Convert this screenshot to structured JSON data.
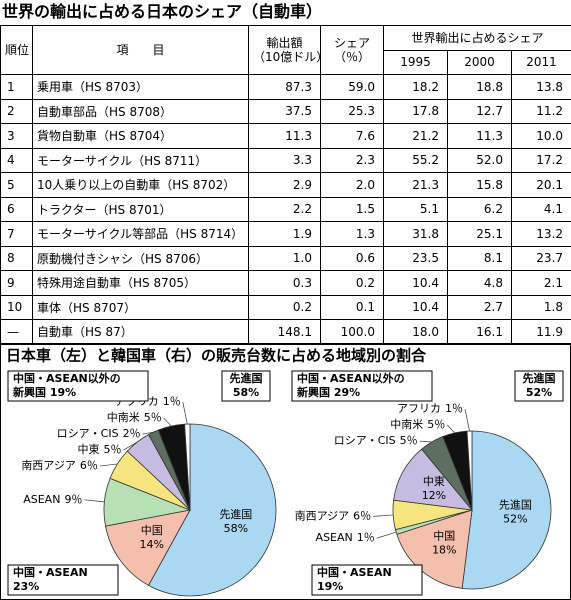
{
  "title": "世界の輸出に占める日本のシェア（自動車）",
  "table": {
    "header": {
      "rank": "順位",
      "item": "項　　目",
      "export": [
        "輸出額",
        "（10億ドル）"
      ],
      "share": [
        "シェア",
        "（％）"
      ],
      "world_share": "世界輸出に占めるシェア",
      "years": [
        "1995",
        "2000",
        "2011"
      ]
    },
    "rows": [
      [
        "1",
        "乗用車（HS 8703）",
        "87.3",
        "59.0",
        "18.2",
        "18.8",
        "13.8"
      ],
      [
        "2",
        "自動車部品（HS 8708）",
        "37.5",
        "25.3",
        "17.8",
        "12.7",
        "11.2"
      ],
      [
        "3",
        "貨物自動車（HS 8704）",
        "11.3",
        "7.6",
        "21.2",
        "11.3",
        "10.0"
      ],
      [
        "4",
        "モーターサイクル（HS 8711）",
        "3.3",
        "2.3",
        "55.2",
        "52.0",
        "17.2"
      ],
      [
        "5",
        "10人乗り以上の自動車（HS 8702）",
        "2.9",
        "2.0",
        "21.3",
        "15.8",
        "20.1"
      ],
      [
        "6",
        "トラクター（HS 8701）",
        "2.2",
        "1.5",
        "5.1",
        "6.2",
        "4.1"
      ],
      [
        "7",
        "モーターサイクル等部品（HS 8714）",
        "1.9",
        "1.3",
        "31.8",
        "25.1",
        "13.2"
      ],
      [
        "8",
        "原動機付きシャシ（HS 8706）",
        "1.0",
        "0.6",
        "23.5",
        "8.1",
        "23.7"
      ],
      [
        "9",
        "特殊用途自動車（HS 8705）",
        "0.3",
        "0.2",
        "10.4",
        "4.8",
        "2.1"
      ],
      [
        "10",
        "車体（HS 8707）",
        "0.2",
        "0.1",
        "10.4",
        "2.7",
        "1.8"
      ],
      [
        "—",
        "自動車（HS 87）",
        "148.1",
        "100.0",
        "18.0",
        "16.1",
        "11.9"
      ]
    ]
  },
  "section_title": "日本車（左）と韓国車（右）の販売台数に占める地域別の割合",
  "chart_data": [
    {
      "type": "pie",
      "categories": [
        "先進国",
        "中国",
        "ASEAN",
        "南西アジア",
        "中東",
        "ロシア・CIS",
        "中南米",
        "アフリカ"
      ],
      "values": [
        58,
        14,
        9,
        6,
        5,
        2,
        5,
        1
      ],
      "value_labels": [
        "58%",
        "14%",
        "9％",
        "6％",
        "5％",
        "2％",
        "5％",
        "1％"
      ],
      "colors": [
        "#aad8f2",
        "#f5bfae",
        "#b7e0b4",
        "#f6e47e",
        "#c6bce2",
        "#5d6f5f",
        "#111111",
        "#ffffff"
      ],
      "annotations": [
        {
          "lines": [
            "中国・ASEAN以外の",
            "新興国 19%"
          ]
        },
        {
          "lines": [
            "先進国",
            "58%"
          ]
        },
        {
          "lines": [
            "中国・ASEAN",
            "23%"
          ]
        }
      ]
    },
    {
      "type": "pie",
      "categories": [
        "先進国",
        "中国",
        "ASEAN",
        "南西アジア",
        "中東",
        "ロシア・CIS",
        "中南米",
        "アフリカ"
      ],
      "values": [
        52,
        18,
        1,
        6,
        12,
        5,
        5,
        1
      ],
      "value_labels": [
        "52%",
        "18%",
        "1％",
        "6％",
        "12%",
        "5％",
        "5％",
        "1％"
      ],
      "colors": [
        "#aad8f2",
        "#f5bfae",
        "#b7e0b4",
        "#f6e47e",
        "#c6bce2",
        "#5d6f5f",
        "#111111",
        "#ffffff"
      ],
      "annotations": [
        {
          "lines": [
            "中国・ASEAN以外の",
            "新興国 29%"
          ]
        },
        {
          "lines": [
            "先進国",
            "52%"
          ]
        },
        {
          "lines": [
            "中国・ASEAN",
            "19%"
          ]
        }
      ]
    }
  ]
}
